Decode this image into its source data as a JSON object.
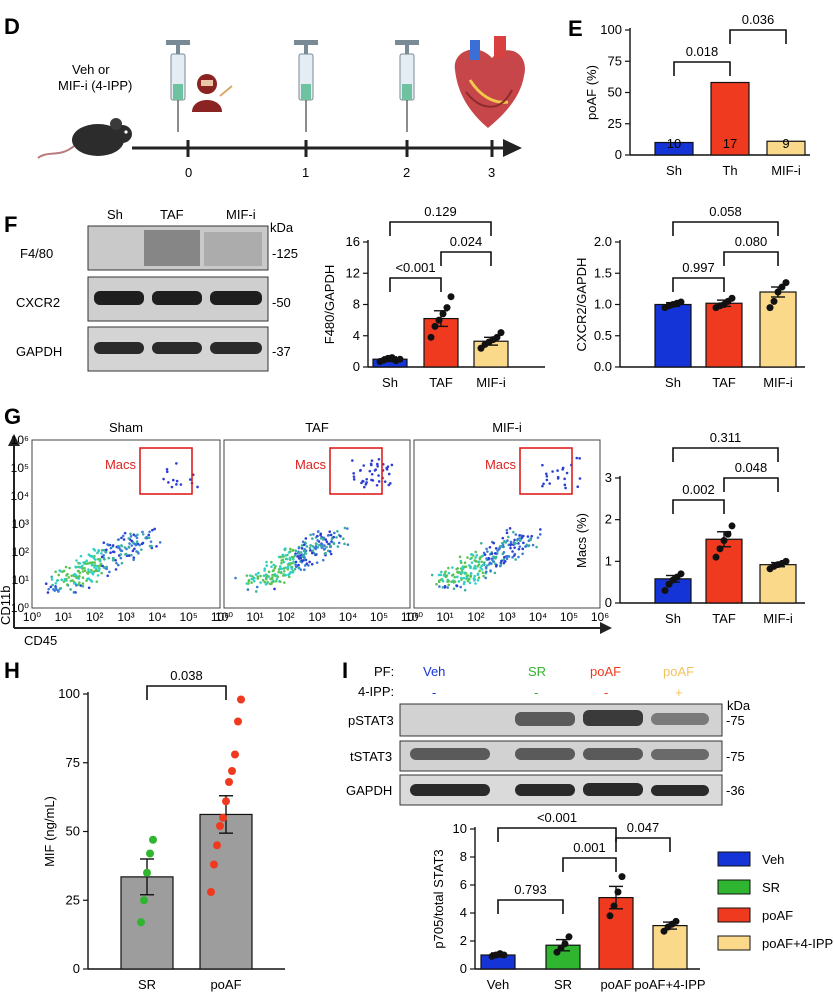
{
  "panel_labels": {
    "d": "D",
    "e": "E",
    "f": "F",
    "g": "G",
    "h": "H",
    "i": "I"
  },
  "colors": {
    "sh": "#1434d8",
    "th": "#f03a1f",
    "mif": "#fbd98b",
    "sr": "#2fb52f",
    "grey": "#9d9d9d",
    "red_label": "#e02020"
  },
  "timeline": {
    "treatment_label": [
      "Veh or",
      "MIF-i (4-IPP)"
    ],
    "ticks": [
      "0",
      "1",
      "2",
      "3"
    ],
    "icons": [
      "mouse-icon",
      "syringe-icon",
      "surgeon-icon",
      "heart-icon"
    ]
  },
  "blot_f": {
    "columns": [
      "Sh",
      "TAF",
      "MIF-i"
    ],
    "unit": "kDa",
    "rows": [
      {
        "label": "F4/80",
        "kda": "-125"
      },
      {
        "label": "CXCR2",
        "kda": "-50"
      },
      {
        "label": "GAPDH",
        "kda": "-37"
      }
    ]
  },
  "flow_g": {
    "plots": [
      {
        "title": "Sham",
        "gate": "Macs"
      },
      {
        "title": "TAF",
        "gate": "Macs"
      },
      {
        "title": "MIF-i",
        "gate": "Macs"
      }
    ],
    "y_ticks": [
      "10⁰",
      "10¹",
      "10²",
      "10³",
      "10⁴",
      "10⁵",
      "10⁶"
    ],
    "x_ticks": [
      "10⁰",
      "10¹",
      "10²",
      "10³",
      "10⁴",
      "10⁵",
      "10⁶"
    ],
    "ylabel": "CD11b",
    "xlabel": "CD45"
  },
  "blot_i": {
    "pf_label": "PF:",
    "ipp_label": "4-IPP:",
    "groups": [
      "Veh",
      "SR",
      "poAF",
      "poAF"
    ],
    "ipp": [
      "-",
      "-",
      "-",
      "+"
    ],
    "unit": "kDa",
    "rows": [
      {
        "label": "pSTAT3",
        "kda": "-75"
      },
      {
        "label": "tSTAT3",
        "kda": "-75"
      },
      {
        "label": "GAPDH",
        "kda": "-36"
      }
    ]
  },
  "chart_data": [
    {
      "id": "E",
      "type": "bar",
      "categories": [
        "Sh",
        "Th",
        "MIF-i"
      ],
      "values": [
        10,
        58,
        11
      ],
      "bar_labels": [
        "10",
        "17",
        "9"
      ],
      "ylabel": "poAF (%)",
      "ylim": [
        0,
        100
      ],
      "yticks": [
        "0",
        "25",
        "50",
        "75",
        "100"
      ],
      "comparisons": [
        {
          "from": 0,
          "to": 1,
          "p": "0.018"
        },
        {
          "from": 1,
          "to": 2,
          "p": "0.036"
        }
      ]
    },
    {
      "id": "F1",
      "type": "bar",
      "categories": [
        "Sh",
        "TAF",
        "MIF-i"
      ],
      "values": [
        1.0,
        6.2,
        3.3
      ],
      "errors": [
        0.3,
        1.0,
        0.5
      ],
      "points": [
        [
          0.7,
          0.9,
          1.1,
          1.2,
          0.8,
          1.0
        ],
        [
          3.8,
          5.2,
          6.0,
          6.8,
          7.6,
          9.0
        ],
        [
          2.4,
          2.9,
          3.2,
          3.5,
          3.8,
          4.4
        ]
      ],
      "ylabel": "F480/GAPDH",
      "ylim": [
        0,
        16
      ],
      "yticks": [
        "0",
        "4",
        "8",
        "12",
        "16"
      ],
      "comparisons": [
        {
          "from": 0,
          "to": 1,
          "p": "<0.001"
        },
        {
          "from": 1,
          "to": 2,
          "p": "0.024"
        },
        {
          "from": 0,
          "to": 2,
          "p": "0.129"
        }
      ]
    },
    {
      "id": "F2",
      "type": "bar",
      "categories": [
        "Sh",
        "TAF",
        "MIF-i"
      ],
      "values": [
        1.0,
        1.02,
        1.2
      ],
      "errors": [
        0.03,
        0.05,
        0.08
      ],
      "points": [
        [
          0.95,
          0.98,
          1.0,
          1.02,
          1.04
        ],
        [
          0.95,
          0.98,
          1.0,
          1.05,
          1.1
        ],
        [
          0.95,
          1.05,
          1.2,
          1.28,
          1.35
        ]
      ],
      "ylabel": "CXCR2/GAPDH",
      "ylim": [
        0,
        2.0
      ],
      "yticks": [
        "0.0",
        "0.5",
        "1.0",
        "1.5",
        "2.0"
      ],
      "comparisons": [
        {
          "from": 0,
          "to": 1,
          "p": "0.997"
        },
        {
          "from": 1,
          "to": 2,
          "p": "0.080"
        },
        {
          "from": 0,
          "to": 2,
          "p": "0.058"
        }
      ]
    },
    {
      "id": "G",
      "type": "bar",
      "categories": [
        "Sh",
        "TAF",
        "MIF-i"
      ],
      "values": [
        0.58,
        1.53,
        0.92
      ],
      "errors": [
        0.08,
        0.18,
        0.05
      ],
      "points": [
        [
          0.3,
          0.45,
          0.55,
          0.62,
          0.7
        ],
        [
          1.1,
          1.3,
          1.5,
          1.65,
          1.85
        ],
        [
          0.82,
          0.88,
          0.92,
          0.95,
          1.0
        ]
      ],
      "ylabel": "Macs (%)",
      "ylim": [
        0,
        3
      ],
      "yticks": [
        "0",
        "1",
        "2",
        "3"
      ],
      "comparisons": [
        {
          "from": 0,
          "to": 1,
          "p": "0.002"
        },
        {
          "from": 1,
          "to": 2,
          "p": "0.048"
        },
        {
          "from": 0,
          "to": 2,
          "p": "0.311"
        }
      ]
    },
    {
      "id": "H",
      "type": "bar",
      "categories": [
        "SR",
        "poAF"
      ],
      "values": [
        33.5,
        56.2
      ],
      "errors": [
        6.5,
        6.8
      ],
      "points": [
        [
          17,
          25,
          35,
          42,
          47
        ],
        [
          28,
          38,
          45,
          52,
          55,
          61,
          68,
          72,
          78,
          90,
          98
        ]
      ],
      "ylabel": "MIF (ng/mL)",
      "ylim": [
        0,
        100
      ],
      "yticks": [
        "0",
        "25",
        "50",
        "75",
        "100"
      ],
      "comparisons": [
        {
          "from": 0,
          "to": 1,
          "p": "0.038"
        }
      ]
    },
    {
      "id": "I",
      "type": "bar",
      "categories": [
        "Veh",
        "SR",
        "poAF",
        "poAF+4-IPP"
      ],
      "values": [
        1.0,
        1.7,
        5.1,
        3.1
      ],
      "errors": [
        0.15,
        0.4,
        0.8,
        0.25
      ],
      "points": [
        [
          0.9,
          1.0,
          1.1,
          1.0
        ],
        [
          1.2,
          1.5,
          1.8,
          2.3
        ],
        [
          3.8,
          4.5,
          5.5,
          6.6
        ],
        [
          2.7,
          3.0,
          3.2,
          3.4
        ]
      ],
      "ylabel": "p705/total STAT3",
      "ylim": [
        0,
        10
      ],
      "yticks": [
        "0",
        "2",
        "4",
        "6",
        "8",
        "10"
      ],
      "legend": [
        "Veh",
        "SR",
        "poAF",
        "poAF+4-IPP"
      ],
      "comparisons": [
        {
          "from": 0,
          "to": 1,
          "p": "0.793"
        },
        {
          "from": 1,
          "to": 2,
          "p": "0.001"
        },
        {
          "from": 2,
          "to": 3,
          "p": "0.047"
        },
        {
          "from": 0,
          "to": 2,
          "p": "<0.001"
        }
      ]
    }
  ]
}
